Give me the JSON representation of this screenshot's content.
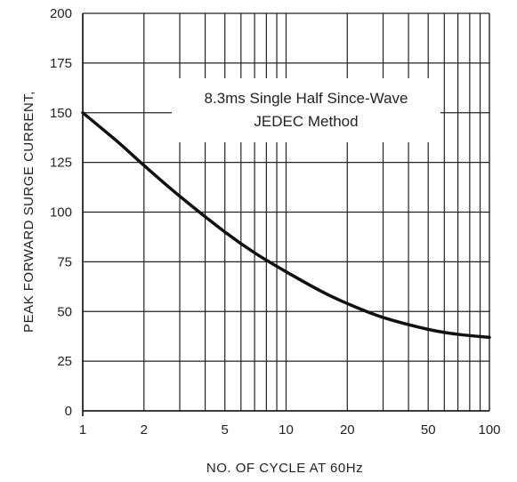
{
  "chart_data": {
    "type": "line",
    "title": "",
    "xlabel": "NO. OF CYCLE AT 60Hz",
    "ylabel": "PEAK FORWARD SURGE CURRENT,",
    "xscale": "log",
    "xlim": [
      1,
      100
    ],
    "ylim": [
      0,
      200
    ],
    "grid": true,
    "x_ticks": [
      1,
      2,
      5,
      10,
      20,
      50,
      100
    ],
    "x_tick_labels": [
      "1",
      "2",
      "5",
      "10",
      "20",
      "50",
      "100"
    ],
    "y_ticks": [
      0,
      25,
      50,
      75,
      100,
      125,
      150,
      175,
      200
    ],
    "y_tick_labels": [
      "0",
      "25",
      "50",
      "75",
      "100",
      "125",
      "150",
      "175",
      "200"
    ],
    "annotation": [
      "8.3ms Single Half Since-Wave",
      "JEDEC Method"
    ],
    "series": [
      {
        "x": [
          1,
          1.5,
          2,
          3,
          5,
          7,
          10,
          15,
          20,
          30,
          50,
          70,
          100
        ],
        "y": [
          150,
          135,
          123.5,
          108,
          90,
          79.5,
          70,
          60,
          54,
          47,
          41,
          38.5,
          37
        ]
      }
    ],
    "colors": {
      "line": "#111111",
      "grid": "#222222",
      "text": "#222222"
    }
  }
}
